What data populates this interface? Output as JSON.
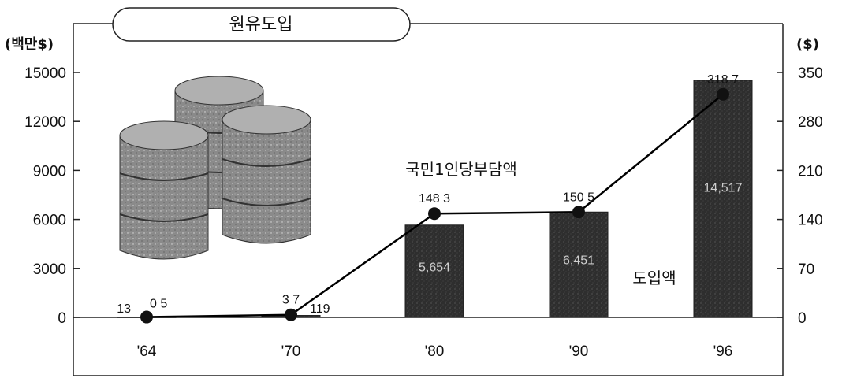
{
  "chart_data": {
    "type": "bar",
    "title": "원유도입",
    "categories": [
      "'64",
      "'70",
      "'80",
      "'90",
      "'96"
    ],
    "left_axis": {
      "unit": "(백만$)",
      "ticks": [
        0,
        3000,
        6000,
        9000,
        12000,
        15000
      ],
      "ylim": [
        0,
        15000
      ]
    },
    "right_axis": {
      "unit": "($)",
      "ticks": [
        0,
        70,
        140,
        210,
        280,
        350
      ],
      "ylim": [
        0,
        350
      ]
    },
    "series": [
      {
        "name": "도입액",
        "type": "bar",
        "axis": "left",
        "values": [
          13,
          119,
          5654,
          6451,
          14517
        ],
        "labels": [
          "13",
          "119",
          "5,654",
          "6,451",
          "14,517"
        ],
        "color": "#3a3a3a"
      },
      {
        "name": "국민1인당부담액",
        "type": "line",
        "axis": "right",
        "values": [
          0.5,
          3.7,
          148.3,
          150.5,
          318.7
        ],
        "labels": [
          "0 5",
          "3 7",
          "148 3",
          "150 5",
          "318 7"
        ],
        "color": "#000000"
      }
    ],
    "illustration": "oil-barrels",
    "grid": false
  }
}
